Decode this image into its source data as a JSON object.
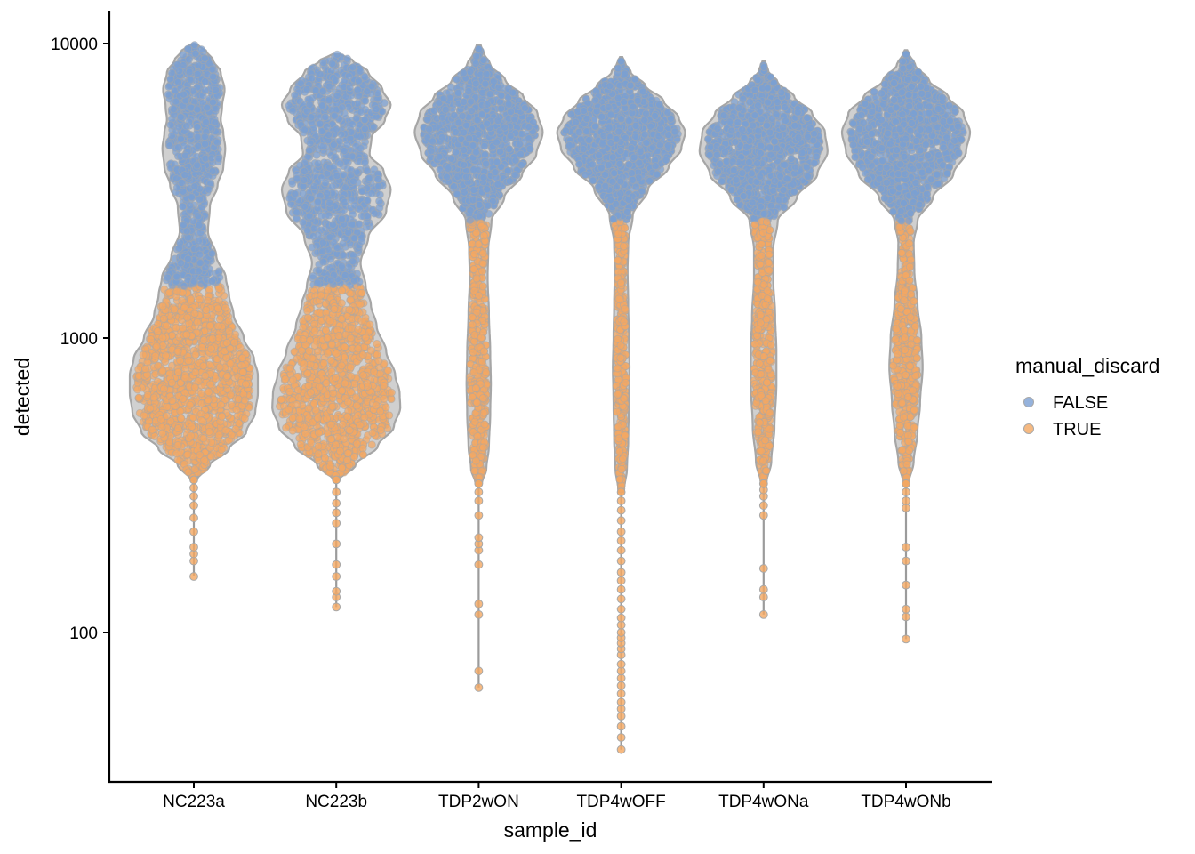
{
  "chart_data": {
    "type": "violin",
    "subtype": "violin-with-beeswarm",
    "xlabel": "sample_id",
    "ylabel": "detected",
    "y_scale": "log10",
    "ylim": [
      36,
      12500
    ],
    "y_ticks": [
      {
        "value": 100,
        "label": "100"
      },
      {
        "value": 1000,
        "label": "1000"
      },
      {
        "value": 10000,
        "label": "10000"
      }
    ],
    "categories": [
      "NC223a",
      "NC223b",
      "TDP2wON",
      "TDP4wOFF",
      "TDP4wONa",
      "TDP4wONb"
    ],
    "grid": false,
    "legend": {
      "title": "manual_discard",
      "position": "right",
      "entries": [
        {
          "label": "FALSE",
          "color": "#7a9fd3"
        },
        {
          "label": "TRUE",
          "color": "#f4a762"
        }
      ]
    },
    "colors": {
      "FALSE": "#7a9fd3",
      "TRUE": "#f4a762",
      "violin_outline": "#a6a6a6"
    },
    "violins": [
      {
        "sample_id": "NC223a",
        "discard_threshold": 1500,
        "min": 155,
        "max": 9900,
        "outliers": [
          155,
          175,
          185,
          195,
          220,
          245,
          270,
          290,
          310,
          330
        ],
        "density": [
          [
            330,
            0.05
          ],
          [
            370,
            0.25
          ],
          [
            420,
            0.55
          ],
          [
            480,
            0.82
          ],
          [
            560,
            0.96
          ],
          [
            650,
            1.0
          ],
          [
            750,
            1.0
          ],
          [
            850,
            0.94
          ],
          [
            1000,
            0.78
          ],
          [
            1200,
            0.62
          ],
          [
            1400,
            0.55
          ],
          [
            1600,
            0.5
          ],
          [
            1900,
            0.35
          ],
          [
            2300,
            0.22
          ],
          [
            2800,
            0.25
          ],
          [
            3300,
            0.37
          ],
          [
            3800,
            0.46
          ],
          [
            4400,
            0.49
          ],
          [
            5000,
            0.46
          ],
          [
            5500,
            0.42
          ],
          [
            6100,
            0.44
          ],
          [
            7000,
            0.48
          ],
          [
            8000,
            0.42
          ],
          [
            8800,
            0.3
          ],
          [
            9400,
            0.2
          ],
          [
            9900,
            0.06
          ]
        ]
      },
      {
        "sample_id": "NC223b",
        "discard_threshold": 1500,
        "min": 122,
        "max": 9200,
        "outliers": [
          122,
          132,
          138,
          155,
          170,
          200,
          235,
          255,
          275,
          300,
          330
        ],
        "density": [
          [
            330,
            0.05
          ],
          [
            370,
            0.3
          ],
          [
            430,
            0.65
          ],
          [
            500,
            0.9
          ],
          [
            580,
            1.0
          ],
          [
            650,
            0.99
          ],
          [
            750,
            0.92
          ],
          [
            900,
            0.78
          ],
          [
            1100,
            0.63
          ],
          [
            1300,
            0.54
          ],
          [
            1500,
            0.46
          ],
          [
            1800,
            0.38
          ],
          [
            2200,
            0.5
          ],
          [
            2700,
            0.78
          ],
          [
            3200,
            0.85
          ],
          [
            3700,
            0.74
          ],
          [
            4200,
            0.52
          ],
          [
            4800,
            0.55
          ],
          [
            5500,
            0.76
          ],
          [
            6200,
            0.85
          ],
          [
            7000,
            0.72
          ],
          [
            8000,
            0.5
          ],
          [
            8800,
            0.25
          ],
          [
            9200,
            0.06
          ]
        ]
      },
      {
        "sample_id": "TDP2wON",
        "discard_threshold": 2500,
        "min": 65,
        "max": 9900,
        "outliers": [
          65,
          74,
          115,
          125,
          170,
          190,
          200,
          210,
          250,
          280,
          300,
          320
        ],
        "density": [
          [
            320,
            0.05
          ],
          [
            360,
            0.12
          ],
          [
            430,
            0.16
          ],
          [
            550,
            0.18
          ],
          [
            700,
            0.19
          ],
          [
            900,
            0.18
          ],
          [
            1200,
            0.16
          ],
          [
            1600,
            0.14
          ],
          [
            2000,
            0.15
          ],
          [
            2500,
            0.2
          ],
          [
            3000,
            0.4
          ],
          [
            3600,
            0.68
          ],
          [
            4200,
            0.9
          ],
          [
            5000,
            1.0
          ],
          [
            5800,
            0.92
          ],
          [
            6600,
            0.7
          ],
          [
            7500,
            0.42
          ],
          [
            8500,
            0.18
          ],
          [
            9300,
            0.08
          ],
          [
            9900,
            0.03
          ]
        ]
      },
      {
        "sample_id": "TDP4wOFF",
        "discard_threshold": 2500,
        "min": 40,
        "max": 9000,
        "outliers": [
          40,
          44,
          48,
          52,
          55,
          58,
          62,
          66,
          70,
          74,
          78,
          84,
          88,
          92,
          96,
          100,
          106,
          112,
          120,
          130,
          140,
          150,
          160,
          175,
          190,
          205,
          220,
          240,
          260,
          280,
          300
        ],
        "density": [
          [
            300,
            0.04
          ],
          [
            360,
            0.09
          ],
          [
            450,
            0.11
          ],
          [
            600,
            0.12
          ],
          [
            800,
            0.13
          ],
          [
            1000,
            0.12
          ],
          [
            1300,
            0.11
          ],
          [
            1700,
            0.1
          ],
          [
            2100,
            0.11
          ],
          [
            2600,
            0.18
          ],
          [
            3200,
            0.42
          ],
          [
            3800,
            0.74
          ],
          [
            4400,
            0.94
          ],
          [
            5000,
            1.0
          ],
          [
            5600,
            0.9
          ],
          [
            6400,
            0.66
          ],
          [
            7200,
            0.38
          ],
          [
            8000,
            0.15
          ],
          [
            8600,
            0.06
          ],
          [
            9000,
            0.02
          ]
        ]
      },
      {
        "sample_id": "TDP4wONa",
        "discard_threshold": 2500,
        "min": 115,
        "max": 8700,
        "outliers": [
          115,
          132,
          140,
          165,
          250,
          270,
          290,
          305,
          320
        ],
        "density": [
          [
            320,
            0.04
          ],
          [
            380,
            0.12
          ],
          [
            500,
            0.17
          ],
          [
            700,
            0.2
          ],
          [
            900,
            0.2
          ],
          [
            1200,
            0.18
          ],
          [
            1600,
            0.15
          ],
          [
            2000,
            0.15
          ],
          [
            2500,
            0.22
          ],
          [
            3000,
            0.52
          ],
          [
            3600,
            0.84
          ],
          [
            4300,
            1.0
          ],
          [
            5000,
            0.96
          ],
          [
            5800,
            0.76
          ],
          [
            6600,
            0.48
          ],
          [
            7400,
            0.22
          ],
          [
            8100,
            0.07
          ],
          [
            8700,
            0.02
          ]
        ]
      },
      {
        "sample_id": "TDP4wONb",
        "discard_threshold": 2500,
        "min": 95,
        "max": 9500,
        "outliers": [
          95,
          113,
          120,
          145,
          175,
          195,
          265,
          280,
          300,
          320
        ],
        "density": [
          [
            320,
            0.04
          ],
          [
            380,
            0.12
          ],
          [
            480,
            0.18
          ],
          [
            600,
            0.22
          ],
          [
            800,
            0.26
          ],
          [
            1000,
            0.24
          ],
          [
            1300,
            0.18
          ],
          [
            1700,
            0.13
          ],
          [
            2100,
            0.12
          ],
          [
            2500,
            0.18
          ],
          [
            3000,
            0.42
          ],
          [
            3600,
            0.74
          ],
          [
            4300,
            0.94
          ],
          [
            5000,
            1.0
          ],
          [
            5800,
            0.9
          ],
          [
            6600,
            0.66
          ],
          [
            7500,
            0.36
          ],
          [
            8500,
            0.14
          ],
          [
            9200,
            0.05
          ],
          [
            9500,
            0.02
          ]
        ]
      }
    ]
  }
}
